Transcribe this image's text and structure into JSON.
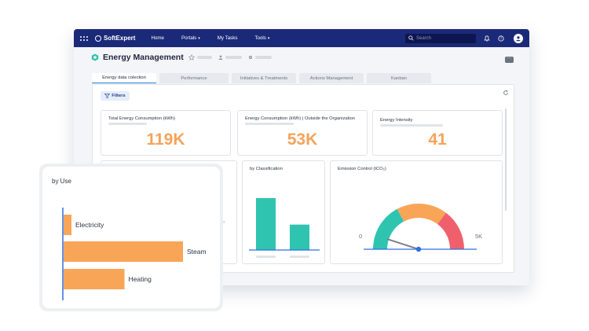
{
  "topbar": {
    "brand": "SoftExpert",
    "nav": [
      {
        "label": "Home",
        "caret": ""
      },
      {
        "label": "Portals",
        "caret": "▾"
      },
      {
        "label": "My Tasks",
        "caret": ""
      },
      {
        "label": "Tools",
        "caret": "▾"
      }
    ],
    "search_placeholder": "Search",
    "icons": [
      "apps-grid-icon",
      "search-icon",
      "bell-icon",
      "help-icon",
      "user-avatar-icon"
    ],
    "color": "#1b2a78"
  },
  "page": {
    "title": "Energy Management",
    "more_label": "···"
  },
  "tabs": [
    {
      "label": "Energy data colection",
      "active": true
    },
    {
      "label": "Performance",
      "active": false
    },
    {
      "label": "Initiatives & Treatments",
      "active": false
    },
    {
      "label": "Actions Management",
      "active": false
    },
    {
      "label": "Kanban",
      "active": false
    }
  ],
  "filters_label": "Filters",
  "kpis": [
    {
      "label": "Total Energy Consumption (kWh)",
      "value": "119K"
    },
    {
      "label": "Energy Consumption (kWh) | Outside the Organization",
      "value": "53K"
    },
    {
      "label": "Energy Intensity",
      "value": "41"
    }
  ],
  "classification_card": {
    "label": "by Classification"
  },
  "emission_card": {
    "label": "Emission Control  (tCO₂)",
    "min_label": "0",
    "max_label": "5K"
  },
  "by_use": {
    "title": "by Use"
  },
  "chart_data": [
    {
      "type": "bar",
      "orientation": "horizontal",
      "title": "by Use",
      "categories": [
        "Electricity",
        "Steam",
        "Heating"
      ],
      "values": [
        6,
        100,
        51
      ],
      "color": "#f9a557"
    },
    {
      "type": "bar",
      "title": "by Classification",
      "categories": [
        "",
        ""
      ],
      "values": [
        100,
        49
      ],
      "color": "#2fc4b0"
    },
    {
      "type": "gauge",
      "title": "Emission Control  (tCO₂)",
      "range": [
        0,
        5000
      ],
      "segment_colors": [
        "#2fc4b0",
        "#f9a557",
        "#f0606c"
      ],
      "needle_angle_deg": 18
    }
  ]
}
